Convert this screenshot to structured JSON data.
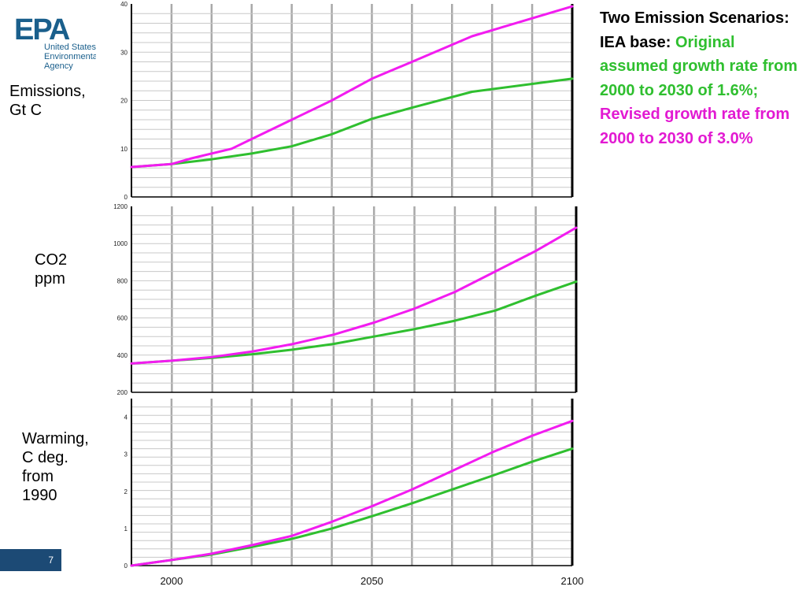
{
  "logo": {
    "text": "EPA",
    "lines": [
      "United States",
      "Environmental Protection",
      "Agency"
    ]
  },
  "labels": {
    "emissions": [
      "Emissions,",
      "Gt C"
    ],
    "co2": [
      "CO2",
      "ppm"
    ],
    "warming": [
      "Warming,",
      "C deg.",
      "from",
      "1990"
    ]
  },
  "annotation": {
    "title": "Two Emission Scenarios: IEA base: ",
    "original": "Original assumed growth rate from 2000 to 2030 of 1.6%;",
    "revised": " Revised growth rate from 2000 to 2030 of 3.0%"
  },
  "page_number": "7",
  "colors": {
    "original": "#2fbf2f",
    "revised": "#f21cf0",
    "grid": "#a9a9a9"
  },
  "chart_data": [
    {
      "type": "line",
      "ylabel": "Emissions, Gt C",
      "xlim": [
        1990,
        2100
      ],
      "ylim": [
        0,
        40
      ],
      "yticks": [
        0,
        10,
        20,
        30,
        40
      ],
      "grid": true,
      "series": [
        {
          "name": "Original",
          "color": "#2fbf2f",
          "x": [
            1990,
            2000,
            2010,
            2020,
            2030,
            2040,
            2050,
            2060,
            2075,
            2100
          ],
          "y": [
            6.2,
            6.8,
            7.8,
            9.0,
            10.5,
            13.0,
            16.2,
            18.5,
            21.8,
            24.5
          ]
        },
        {
          "name": "Revised",
          "color": "#f21cf0",
          "x": [
            1990,
            2000,
            2005,
            2015,
            2020,
            2030,
            2040,
            2050,
            2060,
            2075,
            2100
          ],
          "y": [
            6.2,
            6.8,
            8.0,
            10.0,
            12.0,
            16.0,
            20.0,
            24.5,
            28.0,
            33.3,
            39.5
          ]
        }
      ]
    },
    {
      "type": "line",
      "ylabel": "CO2 ppm",
      "xlim": [
        1990,
        2100
      ],
      "ylim": [
        200,
        1200
      ],
      "yticks": [
        200,
        400,
        600,
        800,
        1000,
        1200
      ],
      "grid": true,
      "series": [
        {
          "name": "Original",
          "color": "#2fbf2f",
          "x": [
            1990,
            2000,
            2010,
            2020,
            2030,
            2040,
            2050,
            2060,
            2070,
            2080,
            2090,
            2100
          ],
          "y": [
            355,
            370,
            385,
            405,
            430,
            460,
            500,
            540,
            585,
            640,
            720,
            795
          ]
        },
        {
          "name": "Revised",
          "color": "#f21cf0",
          "x": [
            1990,
            2000,
            2010,
            2020,
            2030,
            2040,
            2050,
            2060,
            2070,
            2080,
            2090,
            2100
          ],
          "y": [
            355,
            370,
            390,
            420,
            460,
            510,
            575,
            650,
            740,
            850,
            960,
            1085
          ]
        }
      ]
    },
    {
      "type": "line",
      "ylabel": "Warming, C deg. from 1990",
      "xlim": [
        1990,
        2100
      ],
      "ylim": [
        0,
        4.5
      ],
      "yticks": [
        0,
        1,
        2,
        3,
        4
      ],
      "xticks": [
        2000,
        2050,
        2100
      ],
      "grid": true,
      "series": [
        {
          "name": "Original",
          "color": "#2fbf2f",
          "x": [
            1990,
            2000,
            2010,
            2020,
            2030,
            2040,
            2050,
            2060,
            2070,
            2080,
            2090,
            2100
          ],
          "y": [
            0.0,
            0.15,
            0.3,
            0.5,
            0.72,
            1.0,
            1.33,
            1.68,
            2.05,
            2.42,
            2.8,
            3.15
          ]
        },
        {
          "name": "Revised",
          "color": "#f21cf0",
          "x": [
            1990,
            2000,
            2010,
            2020,
            2030,
            2040,
            2050,
            2060,
            2070,
            2080,
            2090,
            2100
          ],
          "y": [
            0.0,
            0.15,
            0.32,
            0.55,
            0.8,
            1.18,
            1.6,
            2.05,
            2.55,
            3.05,
            3.5,
            3.9
          ]
        }
      ]
    }
  ]
}
